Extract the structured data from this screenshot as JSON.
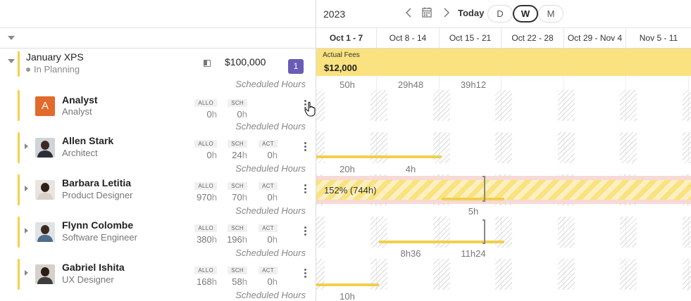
{
  "toolbar": {
    "year": "2023",
    "today_label": "Today",
    "scales": [
      {
        "label": "D",
        "active": false
      },
      {
        "label": "W",
        "active": true
      },
      {
        "label": "M",
        "active": false
      }
    ]
  },
  "weeks": [
    "Oct 1 - 7",
    "Oct 8 - 14",
    "Oct 15 - 21",
    "Oct 22 - 28",
    "Oct 29 - Nov 4",
    "Nov 5 - 11"
  ],
  "project": {
    "title": "January XPS",
    "status": "In Planning",
    "budget": "$100,000",
    "member_count": "1",
    "scheduled_label": "Scheduled Hours",
    "fees_label": "Actual Fees",
    "fees_amount": "$12,000",
    "hours": [
      "50h",
      "29h48",
      "39h12"
    ]
  },
  "stat_labels": {
    "allo": "ALLO",
    "sch": "SCH",
    "act": "ACT"
  },
  "unit": "h",
  "colors": {
    "accent": "#f3d24b",
    "badge": "#6a5bb6",
    "analyst_avatar": "#e26a2c",
    "bar": "#f1cf4a",
    "overallocation": "#f7d9d5"
  },
  "rows": [
    {
      "name": "Analyst",
      "role": "Analyst",
      "avatar_letter": "A",
      "allo": "0",
      "sch": "0",
      "act": null,
      "scheduled_label": "Scheduled Hours",
      "hours": []
    },
    {
      "name": "Allen Stark",
      "role": "Architect",
      "avatar_letter": null,
      "allo": "0",
      "sch": "24",
      "act": "0",
      "scheduled_label": "Scheduled Hours",
      "hours": [
        "20h",
        "4h"
      ]
    },
    {
      "name": "Barbara Letitia",
      "role": "Product Designer",
      "avatar_letter": null,
      "allo": "970",
      "sch": "70",
      "act": "0",
      "scheduled_label": "Scheduled Hours",
      "overallocation": "152% (744h)",
      "hours": [
        "5h"
      ]
    },
    {
      "name": "Flynn Colombe",
      "role": "Software Engineer",
      "avatar_letter": null,
      "allo": "380",
      "sch": "196",
      "act": "0",
      "scheduled_label": "Scheduled Hours",
      "hours": [
        "8h36",
        "11h24"
      ]
    },
    {
      "name": "Gabriel Ishita",
      "role": "UX Designer",
      "avatar_letter": null,
      "allo": "168",
      "sch": "58",
      "act": "0",
      "scheduled_label": "Scheduled Hours",
      "hours": [
        "10h"
      ]
    }
  ],
  "icons": [
    "chevron-left-icon",
    "calendar-icon",
    "chevron-right-icon",
    "caret-down-icon",
    "panel-icon",
    "kebab-menu-icon",
    "hand-pointer-icon"
  ]
}
